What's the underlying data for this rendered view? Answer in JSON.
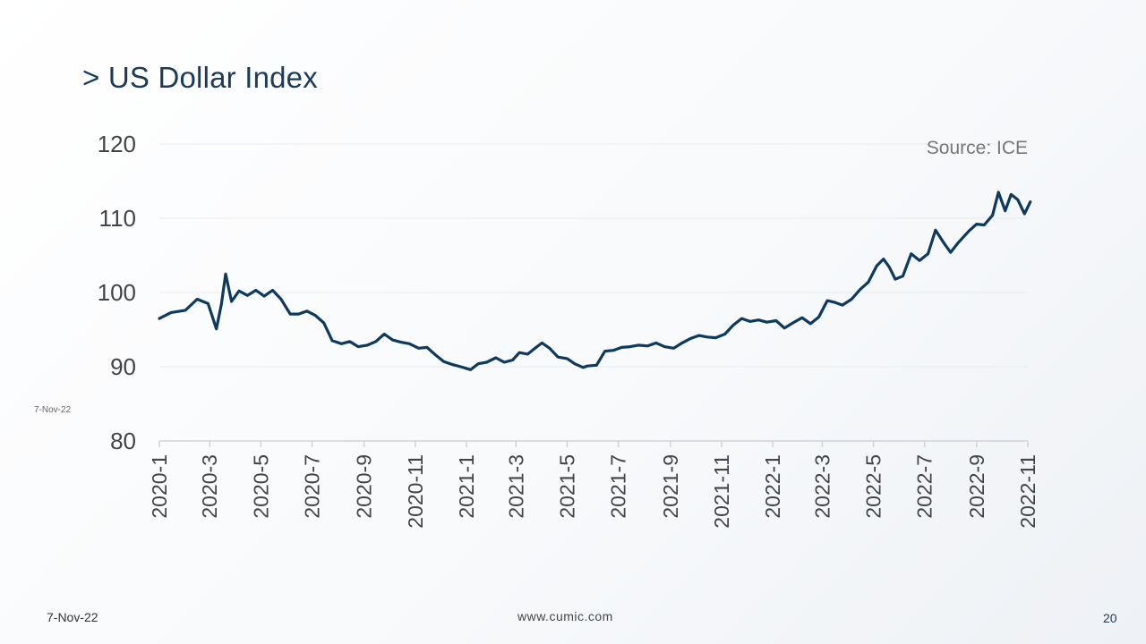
{
  "slide": {
    "title": "> US Dollar Index",
    "side_date": "7-Nov-22",
    "footer_date": "7-Nov-22",
    "footer_url": "www.cumic.com",
    "page_number": "20"
  },
  "colors": {
    "line": "#0d3a5e",
    "title": "#1b3a5c",
    "grid": "#e9ecef",
    "axis": "#cfd4da"
  },
  "chart_data": {
    "type": "line",
    "title": "",
    "source": "Source: ICE",
    "xlabel": "",
    "ylabel": "",
    "ylim": [
      80,
      120
    ],
    "yticks": [
      "120",
      "110",
      "100",
      "90",
      "80"
    ],
    "grid": true,
    "x_ticks": [
      "2020-1",
      "2020-3",
      "2020-5",
      "2020-7",
      "2020-9",
      "2020-11",
      "2021-1",
      "2021-3",
      "2021-5",
      "2021-7",
      "2021-9",
      "2021-11",
      "2022-1",
      "2022-3",
      "2022-5",
      "2022-7",
      "2022-9",
      "2022-11"
    ],
    "series": [
      {
        "x": [
          "2020-01-01",
          "2020-01-15",
          "2020-02-01",
          "2020-02-15",
          "2020-02-28",
          "2020-03-09",
          "2020-03-15",
          "2020-03-20",
          "2020-03-27",
          "2020-04-05",
          "2020-04-15",
          "2020-04-25",
          "2020-05-05",
          "2020-05-15",
          "2020-05-25",
          "2020-06-05",
          "2020-06-15",
          "2020-06-25",
          "2020-07-05",
          "2020-07-15",
          "2020-07-25",
          "2020-08-05",
          "2020-08-15",
          "2020-08-25",
          "2020-09-05",
          "2020-09-15",
          "2020-09-25",
          "2020-10-05",
          "2020-10-15",
          "2020-10-25",
          "2020-11-05",
          "2020-11-15",
          "2020-11-25",
          "2020-12-05",
          "2020-12-15",
          "2020-12-25",
          "2021-01-06",
          "2021-01-15",
          "2021-01-25",
          "2021-02-05",
          "2021-02-15",
          "2021-02-25",
          "2021-03-05",
          "2021-03-15",
          "2021-03-25",
          "2021-04-01",
          "2021-04-10",
          "2021-04-20",
          "2021-05-01",
          "2021-05-10",
          "2021-05-20",
          "2021-05-25",
          "2021-06-05",
          "2021-06-15",
          "2021-06-25",
          "2021-07-05",
          "2021-07-15",
          "2021-07-25",
          "2021-08-05",
          "2021-08-15",
          "2021-08-25",
          "2021-09-05",
          "2021-09-15",
          "2021-09-25",
          "2021-10-05",
          "2021-10-15",
          "2021-10-25",
          "2021-11-05",
          "2021-11-15",
          "2021-11-25",
          "2021-12-05",
          "2021-12-15",
          "2021-12-25",
          "2022-01-05",
          "2022-01-15",
          "2022-01-25",
          "2022-02-05",
          "2022-02-15",
          "2022-02-25",
          "2022-03-07",
          "2022-03-15",
          "2022-03-25",
          "2022-04-05",
          "2022-04-15",
          "2022-04-25",
          "2022-05-05",
          "2022-05-13",
          "2022-05-20",
          "2022-05-27",
          "2022-06-05",
          "2022-06-15",
          "2022-06-25",
          "2022-07-05",
          "2022-07-14",
          "2022-07-25",
          "2022-08-01",
          "2022-08-10",
          "2022-08-23",
          "2022-09-01",
          "2022-09-10",
          "2022-09-20",
          "2022-09-27",
          "2022-10-05",
          "2022-10-12",
          "2022-10-20",
          "2022-10-28",
          "2022-11-04"
        ],
        "values": [
          96.5,
          97.3,
          97.6,
          99.1,
          98.5,
          95.1,
          98.5,
          102.5,
          98.8,
          100.2,
          99.6,
          100.3,
          99.5,
          100.3,
          99.1,
          97.1,
          97.1,
          97.5,
          96.9,
          95.9,
          93.5,
          93.1,
          93.4,
          92.7,
          92.9,
          93.4,
          94.4,
          93.6,
          93.3,
          93.1,
          92.5,
          92.6,
          91.6,
          90.7,
          90.3,
          90.0,
          89.6,
          90.4,
          90.6,
          91.2,
          90.6,
          90.9,
          91.9,
          91.7,
          92.6,
          93.2,
          92.5,
          91.3,
          91.1,
          90.4,
          89.9,
          90.1,
          90.2,
          92.1,
          92.2,
          92.6,
          92.7,
          92.9,
          92.8,
          93.2,
          92.7,
          92.5,
          93.2,
          93.8,
          94.2,
          94.0,
          93.9,
          94.4,
          95.6,
          96.5,
          96.1,
          96.3,
          96.0,
          96.2,
          95.2,
          95.9,
          96.6,
          95.8,
          96.7,
          98.9,
          98.7,
          98.3,
          99.1,
          100.4,
          101.4,
          103.6,
          104.5,
          103.4,
          101.8,
          102.2,
          105.2,
          104.3,
          105.2,
          108.4,
          106.5,
          105.4,
          106.7,
          108.3,
          109.2,
          109.1,
          110.4,
          113.5,
          111.0,
          113.2,
          112.5,
          110.6,
          112.2
        ]
      }
    ]
  }
}
